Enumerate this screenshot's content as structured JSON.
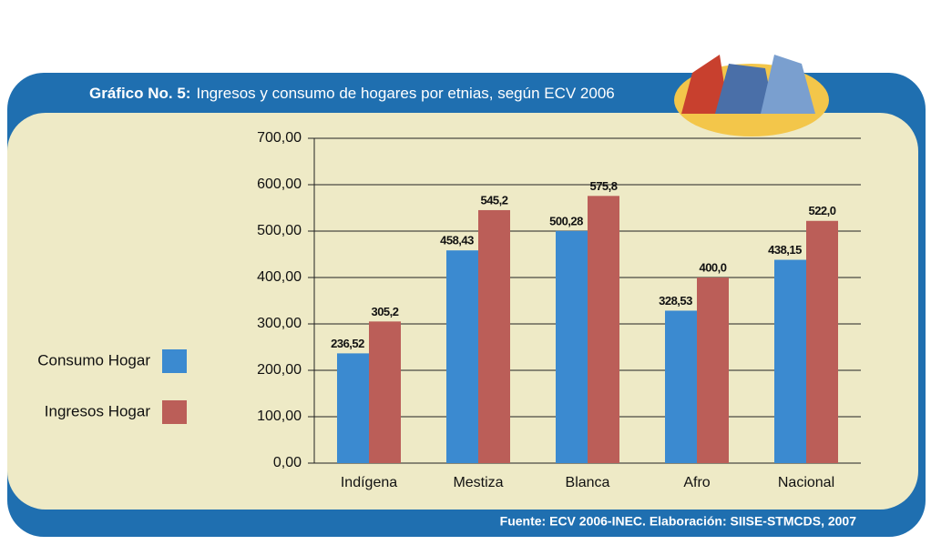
{
  "chart_data": {
    "type": "bar",
    "figure_label": "Gráfico No. 5:",
    "title": "Ingresos y consumo de hogares por etnias, según ECV 2006",
    "categories": [
      "Indígena",
      "Mestiza",
      "Blanca",
      "Afro",
      "Nacional"
    ],
    "series": [
      {
        "name": "Consumo Hogar",
        "color": "#3b8ad0",
        "values": [
          236.52,
          458.43,
          500.28,
          328.53,
          438.15
        ],
        "value_labels": [
          "236,52",
          "458,43",
          "500,28",
          "328,53",
          "438,15"
        ]
      },
      {
        "name": "Ingresos Hogar",
        "color": "#bb5e58",
        "values": [
          305.2,
          545.2,
          575.8,
          400.0,
          522.0
        ],
        "value_labels": [
          "305,2",
          "545,2",
          "575,8",
          "400,0",
          "522,0"
        ]
      }
    ],
    "ylim": [
      0,
      700
    ],
    "yticks": [
      {
        "value": 0,
        "label": "0,00"
      },
      {
        "value": 100,
        "label": "100,00"
      },
      {
        "value": 200,
        "label": "200,00"
      },
      {
        "value": 300,
        "label": "300,00"
      },
      {
        "value": 400,
        "label": "400,00"
      },
      {
        "value": 500,
        "label": "500,00"
      },
      {
        "value": 600,
        "label": "600,00"
      },
      {
        "value": 700,
        "label": "700,00"
      }
    ],
    "grid": true,
    "legend": "left",
    "source": "Fuente: ECV 2006-INEC. Elaboración: SIISE-STMCDS, 2007"
  }
}
